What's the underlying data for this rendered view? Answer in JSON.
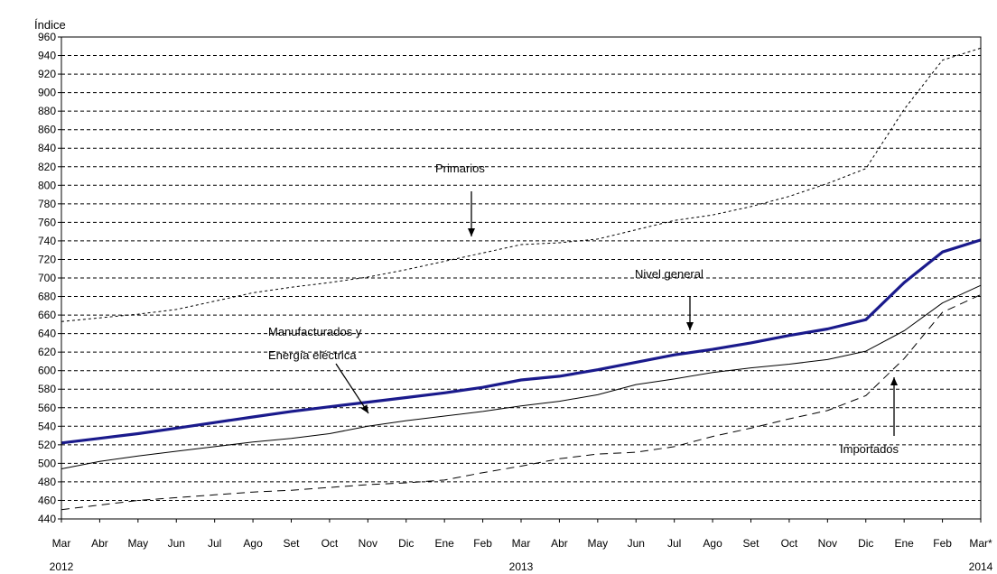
{
  "chart_data": {
    "type": "line",
    "ylabel": "Índice",
    "ylim": [
      440,
      960
    ],
    "yticks": [
      440,
      460,
      480,
      500,
      520,
      540,
      560,
      580,
      600,
      620,
      640,
      660,
      680,
      700,
      720,
      740,
      760,
      780,
      800,
      820,
      840,
      860,
      880,
      900,
      920,
      940,
      960
    ],
    "grid": true,
    "legend": "none",
    "categories": [
      "Mar",
      "Abr",
      "May",
      "Jun",
      "Jul",
      "Ago",
      "Set",
      "Oct",
      "Nov",
      "Dic",
      "Ene",
      "Feb",
      "Mar",
      "Abr",
      "May",
      "Jun",
      "Jul",
      "Ago",
      "Set",
      "Oct",
      "Nov",
      "Dic",
      "Ene",
      "Feb",
      "Mar*"
    ],
    "years": [
      "2012",
      "2013",
      "2014"
    ],
    "series": [
      {
        "name": "Nivel general",
        "style": "thick-solid",
        "color": "#1a1a8c",
        "values": [
          522,
          527,
          532,
          538,
          544,
          550,
          556,
          561,
          566,
          571,
          576,
          582,
          590,
          594,
          601,
          609,
          617,
          623,
          630,
          638,
          645,
          655,
          695,
          728,
          741
        ]
      },
      {
        "name": "Manufacturados y Energía eléctrica",
        "style": "thin-solid",
        "color": "#000000",
        "values": [
          494,
          502,
          508,
          513,
          518,
          523,
          527,
          532,
          540,
          546,
          551,
          556,
          562,
          567,
          574,
          585,
          591,
          598,
          603,
          607,
          612,
          621,
          643,
          673,
          692
        ]
      },
      {
        "name": "Primarios",
        "style": "dotted",
        "color": "#000000",
        "values": [
          653,
          657,
          661,
          666,
          675,
          684,
          690,
          695,
          701,
          709,
          718,
          727,
          736,
          738,
          742,
          752,
          762,
          768,
          777,
          788,
          802,
          818,
          882,
          935,
          948
        ]
      },
      {
        "name": "Importados",
        "style": "dashed",
        "color": "#000000",
        "values": [
          450,
          455,
          460,
          463,
          466,
          469,
          471,
          474,
          477,
          479,
          482,
          490,
          497,
          505,
          510,
          512,
          518,
          529,
          538,
          548,
          557,
          573,
          613,
          663,
          682
        ]
      }
    ],
    "annotations": [
      {
        "id": "primarios",
        "text": "Primarios"
      },
      {
        "id": "nivel",
        "text": "Nivel general"
      },
      {
        "id": "manuf1",
        "text": "Manufacturados y"
      },
      {
        "id": "manuf2",
        "text": "Energía eléctrica"
      },
      {
        "id": "importados",
        "text": "Importados"
      }
    ]
  }
}
